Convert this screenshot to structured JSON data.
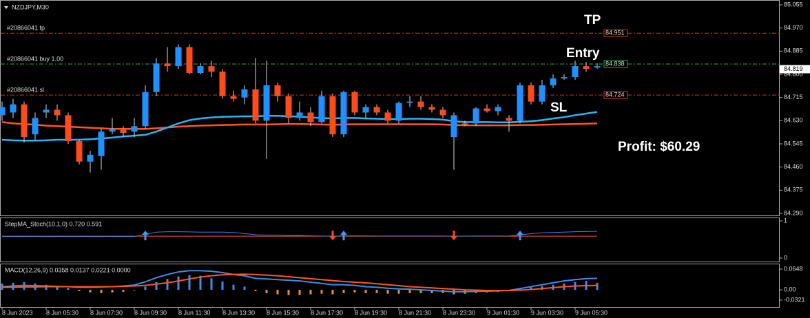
{
  "symbol": "NZDJPY,M30",
  "main": {
    "ylim": [
      84.29,
      85.055
    ],
    "yticks": [
      85.055,
      {
        "value": 84.97,
        "label": "84.970"
      },
      84.885,
      {
        "value": 84.8,
        "label": "84.800"
      },
      84.715,
      {
        "value": 84.63,
        "label": "84.630"
      },
      84.545,
      {
        "value": 84.46,
        "label": "84.460"
      },
      84.375,
      {
        "value": 84.29,
        "label": "84.290"
      }
    ],
    "up_color": "#1e90ff",
    "down_color": "#ff4a1a",
    "candles": [
      [
        84.65,
        84.7,
        84.63,
        84.68
      ],
      [
        84.66,
        84.71,
        84.64,
        84.69
      ],
      [
        84.69,
        84.7,
        84.55,
        84.57
      ],
      [
        84.58,
        84.66,
        84.56,
        84.64
      ],
      [
        84.66,
        84.69,
        84.64,
        84.67
      ],
      [
        84.67,
        84.69,
        84.63,
        84.65
      ],
      [
        84.65,
        84.66,
        84.545,
        84.555
      ],
      [
        84.555,
        84.56,
        84.47,
        84.48
      ],
      [
        84.48,
        84.52,
        84.44,
        84.505
      ],
      [
        84.5,
        84.6,
        84.45,
        84.59
      ],
      [
        84.59,
        84.64,
        84.58,
        84.6
      ],
      [
        84.6,
        84.61,
        84.57,
        84.585
      ],
      [
        84.59,
        84.64,
        84.57,
        84.61
      ],
      [
        84.61,
        84.76,
        84.6,
        84.735
      ],
      [
        84.735,
        84.86,
        84.72,
        84.84
      ],
      [
        84.84,
        84.9,
        84.81,
        84.83
      ],
      [
        84.83,
        84.91,
        84.82,
        84.9
      ],
      [
        84.9,
        84.91,
        84.8,
        84.805
      ],
      [
        84.805,
        84.84,
        84.8,
        84.83
      ],
      [
        84.83,
        84.85,
        84.79,
        84.81
      ],
      [
        84.81,
        84.82,
        84.71,
        84.72
      ],
      [
        84.72,
        84.74,
        84.7,
        84.71
      ],
      [
        84.715,
        84.76,
        84.69,
        84.745
      ],
      [
        84.745,
        84.86,
        84.62,
        84.63
      ],
      [
        84.63,
        84.85,
        84.49,
        84.76
      ],
      [
        84.76,
        84.77,
        84.7,
        84.72
      ],
      [
        84.72,
        84.73,
        84.62,
        84.64
      ],
      [
        84.64,
        84.7,
        84.63,
        84.66
      ],
      [
        84.66,
        84.68,
        84.61,
        84.625
      ],
      [
        84.625,
        84.74,
        84.62,
        84.72
      ],
      [
        84.72,
        84.73,
        84.57,
        84.58
      ],
      [
        84.58,
        84.74,
        84.57,
        84.735
      ],
      [
        84.735,
        84.74,
        84.65,
        84.66
      ],
      [
        84.66,
        84.69,
        84.64,
        84.68
      ],
      [
        84.68,
        84.69,
        84.65,
        84.66
      ],
      [
        84.66,
        84.67,
        84.62,
        84.63
      ],
      [
        84.63,
        84.7,
        84.62,
        84.695
      ],
      [
        84.695,
        84.72,
        84.68,
        84.7
      ],
      [
        84.7,
        84.72,
        84.67,
        84.68
      ],
      [
        84.68,
        84.69,
        84.66,
        84.67
      ],
      [
        84.67,
        84.68,
        84.64,
        84.65
      ],
      [
        84.57,
        84.66,
        84.45,
        84.65
      ],
      [
        84.62,
        84.63,
        84.61,
        84.615
      ],
      [
        84.62,
        84.68,
        84.61,
        84.675
      ],
      [
        84.675,
        84.69,
        84.66,
        84.665
      ],
      [
        84.665,
        84.69,
        84.65,
        84.68
      ],
      [
        84.64,
        84.65,
        84.59,
        84.63
      ],
      [
        84.63,
        84.77,
        84.62,
        84.76
      ],
      [
        84.76,
        84.77,
        84.69,
        84.7
      ],
      [
        84.7,
        84.78,
        84.69,
        84.76
      ],
      [
        84.76,
        84.8,
        84.75,
        84.785
      ],
      [
        84.785,
        84.8,
        84.78,
        84.79
      ],
      [
        84.79,
        84.85,
        84.78,
        84.83
      ],
      [
        84.83,
        84.845,
        84.81,
        84.82
      ],
      [
        84.825,
        84.84,
        84.82,
        84.83
      ]
    ],
    "ma_fast": {
      "color": "#29b6f6",
      "values": [
        84.56,
        84.558,
        84.557,
        84.557,
        84.558,
        84.56,
        84.56,
        84.56,
        84.562,
        84.565,
        84.568,
        84.572,
        84.575,
        84.578,
        84.59,
        84.605,
        84.62,
        84.632,
        84.638,
        84.642,
        84.644,
        84.645,
        84.646,
        84.646,
        84.648,
        84.648,
        84.646,
        84.645,
        84.642,
        84.64,
        84.638,
        84.64,
        84.64,
        84.638,
        84.637,
        84.636,
        84.636,
        84.637,
        84.637,
        84.636,
        84.634,
        84.628,
        84.625,
        84.625,
        84.625,
        84.624,
        84.624,
        84.626,
        84.628,
        84.632,
        84.638,
        84.643,
        84.65,
        84.656,
        84.662
      ]
    },
    "ma_slow": {
      "color": "#ff5722",
      "values": [
        84.625,
        84.62,
        84.618,
        84.615,
        84.612,
        84.61,
        84.608,
        84.606,
        84.604,
        84.602,
        84.6,
        84.6,
        84.6,
        84.6,
        84.602,
        84.605,
        84.608,
        84.61,
        84.612,
        84.613,
        84.614,
        84.615,
        84.616,
        84.616,
        84.616,
        84.617,
        84.618,
        84.618,
        84.617,
        84.616,
        84.615,
        84.616,
        84.617,
        84.617,
        84.617,
        84.617,
        84.617,
        84.617,
        84.617,
        84.617,
        84.616,
        84.614,
        84.613,
        84.613,
        84.613,
        84.613,
        84.613,
        84.614,
        84.614,
        84.615,
        84.616,
        84.617,
        84.618,
        84.619,
        84.62
      ]
    },
    "orders": [
      {
        "label": "#20866041 tp",
        "price": 84.951,
        "color": "#e0301e"
      },
      {
        "label": "#20866041 buy 1.00",
        "price": 84.838,
        "color": "#22b14c"
      },
      {
        "label": "#20866041 sl",
        "price": 84.724,
        "color": "#e0301e"
      }
    ],
    "current_price": 84.819,
    "annotations": {
      "tp": "TP",
      "entry": "Entry",
      "sl": "SL",
      "profit": "Profit: $60.29"
    }
  },
  "stoch": {
    "title": "StepMA_Stoch(10,1,0) 0.720 0.591",
    "ylim": [
      0,
      1
    ],
    "yticks": [
      1,
      0
    ],
    "values": [
      0.58,
      0.58,
      0.582,
      0.58,
      0.578,
      0.578,
      0.58,
      0.58,
      0.578,
      0.578,
      0.58,
      0.58,
      0.582,
      0.64,
      0.7,
      0.71,
      0.71,
      0.705,
      0.7,
      0.7,
      0.7,
      0.69,
      0.66,
      0.63,
      0.62,
      0.62,
      0.61,
      0.61,
      0.6,
      0.595,
      0.59,
      0.6,
      0.6,
      0.598,
      0.596,
      0.595,
      0.595,
      0.595,
      0.595,
      0.596,
      0.595,
      0.59,
      0.592,
      0.594,
      0.595,
      0.596,
      0.598,
      0.62,
      0.66,
      0.68,
      0.69,
      0.7,
      0.71,
      0.715,
      0.72
    ],
    "signal": 0.591,
    "up_arrows": [
      13,
      31,
      47
    ],
    "down_arrows": [
      30,
      41
    ]
  },
  "macd": {
    "title": "MACD(12,26,9) 0.0358 0.0137 0.0221 0.0000",
    "ylim": [
      -0.0321,
      0.0648
    ],
    "yticks": [
      0.0648,
      {
        "value": 0,
        "label": "0.00"
      },
      -0.0321
    ],
    "histogram": [
      0.02,
      0.022,
      0.024,
      0.02,
      0.016,
      0.012,
      0.006,
      -0.004,
      -0.008,
      -0.01,
      -0.008,
      -0.006,
      -0.002,
      0.01,
      0.024,
      0.034,
      0.042,
      0.046,
      0.044,
      0.036,
      0.026,
      0.016,
      0.01,
      -0.004,
      -0.01,
      -0.014,
      -0.016,
      -0.016,
      -0.014,
      -0.012,
      -0.014,
      -0.01,
      -0.008,
      -0.01,
      -0.01,
      -0.012,
      -0.012,
      -0.01,
      -0.01,
      -0.01,
      -0.01,
      -0.014,
      -0.012,
      -0.01,
      -0.008,
      -0.006,
      -0.002,
      0.004,
      0.008,
      0.012,
      0.016,
      0.02,
      0.024,
      0.028,
      0.022
    ],
    "main": [
      0.01,
      0.012,
      0.014,
      0.013,
      0.012,
      0.011,
      0.01,
      0.008,
      0.008,
      0.009,
      0.01,
      0.012,
      0.015,
      0.025,
      0.038,
      0.048,
      0.056,
      0.06,
      0.06,
      0.058,
      0.054,
      0.048,
      0.044,
      0.036,
      0.034,
      0.032,
      0.03,
      0.028,
      0.024,
      0.02,
      0.016,
      0.016,
      0.014,
      0.01,
      0.008,
      0.005,
      0.003,
      0.002,
      0,
      -0.002,
      -0.004,
      -0.006,
      -0.006,
      -0.005,
      -0.004,
      -0.003,
      -0.002,
      0.004,
      0.01,
      0.016,
      0.022,
      0.028,
      0.032,
      0.035,
      0.036
    ],
    "signal": [
      0.008,
      0.008,
      0.009,
      0.009,
      0.01,
      0.01,
      0.01,
      0.01,
      0.01,
      0.01,
      0.01,
      0.011,
      0.012,
      0.014,
      0.018,
      0.022,
      0.028,
      0.034,
      0.04,
      0.044,
      0.047,
      0.048,
      0.049,
      0.048,
      0.046,
      0.044,
      0.041,
      0.038,
      0.035,
      0.032,
      0.029,
      0.026,
      0.024,
      0.022,
      0.019,
      0.016,
      0.013,
      0.01,
      0.008,
      0.006,
      0.004,
      0.002,
      0,
      -0.001,
      -0.002,
      -0.002,
      -0.002,
      -0.001,
      0.001,
      0.004,
      0.007,
      0.01,
      0.012,
      0.013,
      0.014
    ]
  },
  "time_labels": [
    "8 Jun 2023",
    "8 Jun 05:30",
    "8 Jun 07:30",
    "8 Jun 09:30",
    "8 Jun 11:30",
    "8 Jun 13:30",
    "8 Jun 15:30",
    "8 Jun 17:30",
    "8 Jun 19:30",
    "8 Jun 21:30",
    "8 Jun 23:30",
    "9 Jun 01:30",
    "9 Jun 03:30",
    "9 Jun 05:30"
  ]
}
